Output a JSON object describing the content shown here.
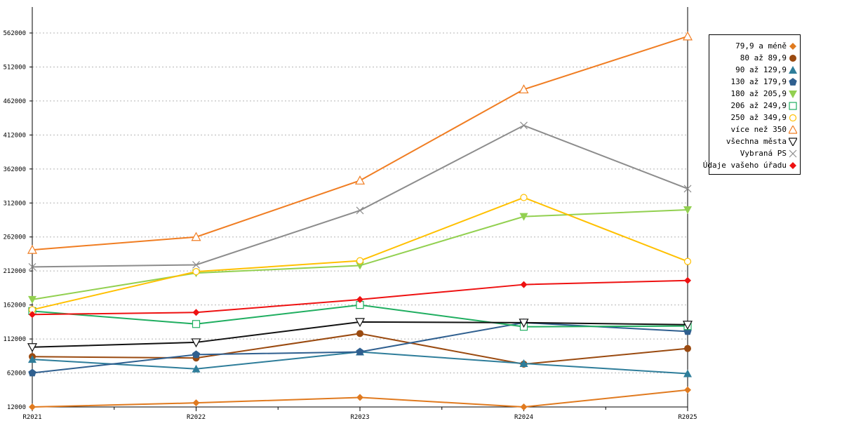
{
  "chart_data": {
    "type": "line",
    "title": "",
    "xlabel": "",
    "ylabel": "",
    "categories": [
      "R2021",
      "R2022",
      "R2023",
      "R2024",
      "R2025"
    ],
    "y_ticks": [
      "12000",
      "62000",
      "112000",
      "162000",
      "212000",
      "262000",
      "312000",
      "362000",
      "412000",
      "462000",
      "512000",
      "562000"
    ],
    "ylim": [
      12000,
      600000
    ],
    "grid": true,
    "legend_position": "right",
    "series": [
      {
        "name": "79,9 a méně",
        "color": "#e07a1f",
        "marker": "diamond",
        "values": [
          12000,
          18000,
          26000,
          12000,
          37000
        ]
      },
      {
        "name": "80 až 89,9",
        "color": "#9a4a10",
        "marker": "circle",
        "values": [
          86000,
          84000,
          120000,
          75000,
          98000
        ]
      },
      {
        "name": "90 až 129,9",
        "color": "#2e7d9a",
        "marker": "triangle",
        "values": [
          82000,
          68000,
          93000,
          76000,
          61000
        ]
      },
      {
        "name": "130 až 179,9",
        "color": "#2f5f8f",
        "marker": "pentagon",
        "values": [
          62000,
          89000,
          93000,
          136000,
          123000
        ]
      },
      {
        "name": "180 až 205,9",
        "color": "#92d050",
        "marker": "triangle-down",
        "values": [
          170000,
          209000,
          220000,
          292000,
          302000
        ]
      },
      {
        "name": "206 až 249,9",
        "color": "#1fae60",
        "marker": "square-open",
        "values": [
          153000,
          134000,
          162000,
          130000,
          131000
        ]
      },
      {
        "name": "250 až 349,9",
        "color": "#ffc000",
        "marker": "circle-open",
        "values": [
          155000,
          211000,
          227000,
          320000,
          226000
        ]
      },
      {
        "name": "více než 350",
        "color": "#f07d22",
        "marker": "triangle-open",
        "values": [
          243000,
          262000,
          345000,
          479000,
          557000
        ]
      },
      {
        "name": "všechna města",
        "color": "#111111",
        "marker": "triangle-down-open",
        "values": [
          100000,
          107000,
          137000,
          136000,
          133000
        ]
      },
      {
        "name": "Vybraná PS",
        "color": "#8c8c8c",
        "marker": "x",
        "values": [
          218000,
          221000,
          301000,
          426000,
          333000
        ]
      },
      {
        "name": "Údaje vašeho úřadu",
        "color": "#ee1111",
        "marker": "diamond",
        "values": [
          148000,
          151000,
          170000,
          192000,
          198000
        ]
      }
    ]
  }
}
